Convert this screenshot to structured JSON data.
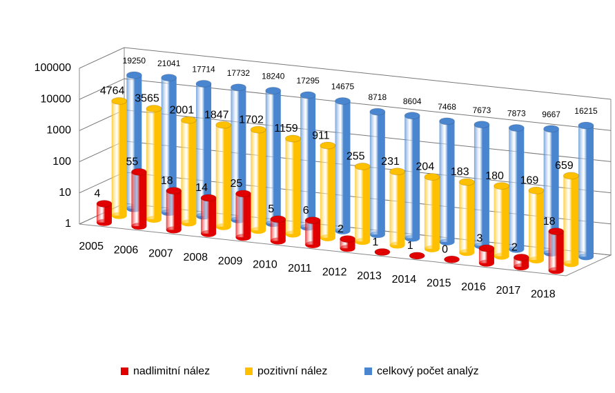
{
  "chart_data": {
    "type": "bar3d",
    "log": true,
    "grid": true,
    "categories": [
      "2005",
      "2006",
      "2007",
      "2008",
      "2009",
      "2010",
      "2011",
      "2012",
      "2013",
      "2014",
      "2015",
      "2016",
      "2017",
      "2018"
    ],
    "series": [
      {
        "name": "nadlimitní nález",
        "color": "#e00000",
        "values": [
          4,
          55,
          18,
          14,
          25,
          5,
          6,
          2,
          1,
          1,
          0,
          3,
          2,
          18
        ]
      },
      {
        "name": "pozitivní nález",
        "color": "#ffc000",
        "values": [
          4764,
          3565,
          2001,
          1847,
          1702,
          1159,
          911,
          255,
          231,
          204,
          183,
          180,
          169,
          659
        ]
      },
      {
        "name": "celkový počet analýz",
        "color": "#4a86d0",
        "values": [
          19250,
          21041,
          17714,
          17732,
          18240,
          17295,
          14675,
          8718,
          8604,
          7468,
          7673,
          7873,
          9667,
          16215
        ]
      }
    ],
    "ylim": [
      1,
      100000
    ],
    "yticks": [
      1,
      10,
      100,
      1000,
      10000,
      100000
    ],
    "legend": "bottom"
  }
}
